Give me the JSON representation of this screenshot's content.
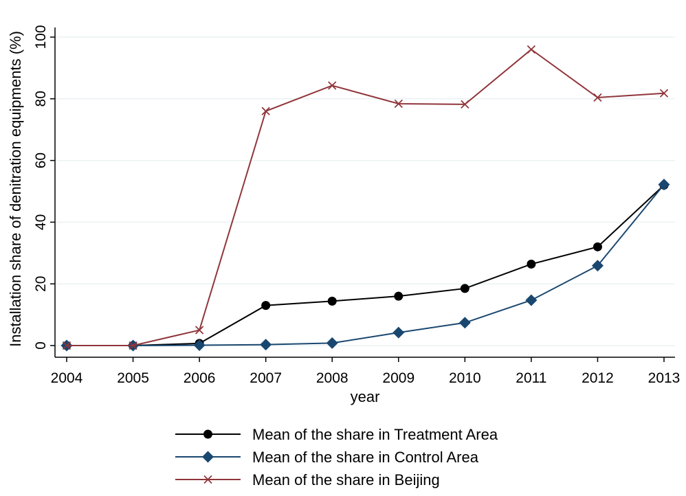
{
  "chart_data": {
    "type": "line",
    "title": "",
    "xlabel": "year",
    "ylabel": "Installation share of denitration equipments (%)",
    "x": [
      2004,
      2005,
      2006,
      2007,
      2008,
      2009,
      2010,
      2011,
      2012,
      2013
    ],
    "xlim": [
      2004,
      2013
    ],
    "ylim": [
      0,
      100
    ],
    "yticks": [
      0,
      20,
      40,
      60,
      80,
      100
    ],
    "grid": "horizontal",
    "legend_position": "bottom",
    "series": [
      {
        "name": "Mean of the share in Treatment Area",
        "marker": "circle",
        "color": "#000000",
        "values": [
          0,
          0,
          0.7,
          13,
          14.4,
          16,
          18.5,
          26.4,
          32,
          52
        ]
      },
      {
        "name": "Mean of the share in Control Area",
        "marker": "diamond",
        "color": "#1a476f",
        "values": [
          0,
          0,
          0.1,
          0.3,
          0.8,
          4.2,
          7.4,
          14.7,
          25.9,
          52.2
        ]
      },
      {
        "name": "Mean of the share in Beijing",
        "marker": "x",
        "color": "#90353b",
        "values": [
          0,
          0,
          5,
          76,
          84.3,
          78.4,
          78.2,
          96,
          80.4,
          81.8
        ]
      }
    ]
  }
}
